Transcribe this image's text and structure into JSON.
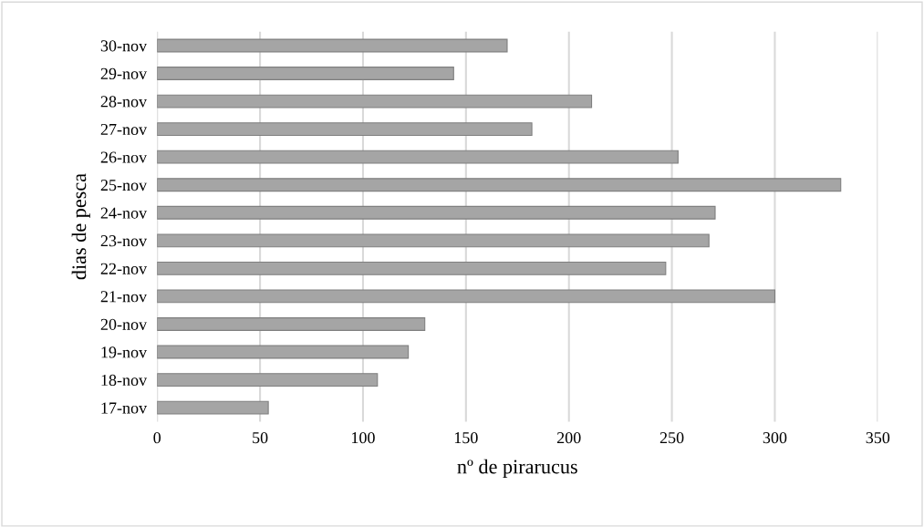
{
  "chart_data": {
    "type": "bar",
    "orientation": "horizontal",
    "xlabel": "nº de pirarucus",
    "ylabel": "dias de pesca",
    "categories": [
      "30-nov",
      "29-nov",
      "28-nov",
      "27-nov",
      "26-nov",
      "25-nov",
      "24-nov",
      "23-nov",
      "22-nov",
      "21-nov",
      "20-nov",
      "19-nov",
      "18-nov",
      "17-nov"
    ],
    "values": [
      170,
      144,
      211,
      182,
      253,
      332,
      271,
      268,
      247,
      300,
      130,
      122,
      107,
      54
    ],
    "color": "#a5a5a5",
    "xlim": [
      0,
      350
    ],
    "xticks": [
      0,
      50,
      100,
      150,
      200,
      250,
      300,
      350
    ],
    "grid": "x"
  }
}
